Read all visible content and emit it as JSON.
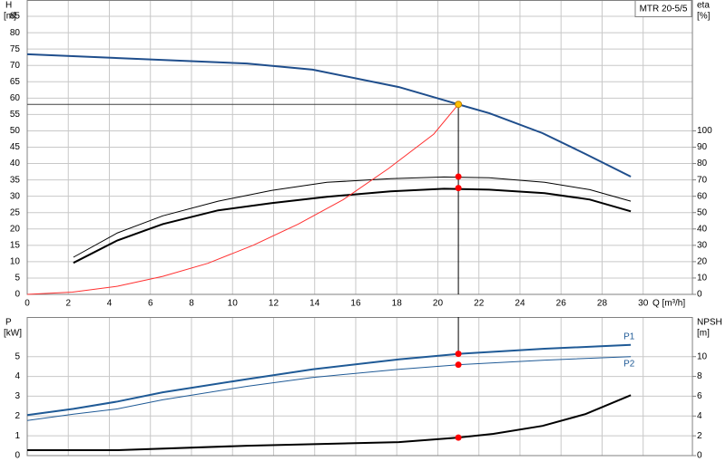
{
  "chart_data": [
    {
      "type": "line",
      "title": "MTR 20-5/5",
      "xlabel": "Q [m³/h]",
      "ylabel": "H",
      "yunit": "[m]",
      "y2label": "eta",
      "y2unit": "[%]",
      "xlim": [
        0,
        32.4
      ],
      "xticks": [
        0,
        2,
        4,
        6,
        8,
        10,
        12,
        14,
        16,
        18,
        20,
        22,
        24,
        26,
        28,
        30
      ],
      "ylim": [
        0,
        90
      ],
      "yticks": [
        0,
        5,
        10,
        15,
        20,
        25,
        30,
        35,
        40,
        45,
        50,
        55,
        60,
        65,
        70,
        75,
        80,
        85
      ],
      "y2lim": [
        0,
        180
      ],
      "y2ticks": [
        0,
        10,
        20,
        30,
        40,
        50,
        60,
        70,
        80,
        90,
        100
      ],
      "grid": true,
      "series": [
        {
          "color": "#1f4e8c",
          "width": 2,
          "x": [
            0,
            10.7,
            13.9,
            18.1,
            21,
            22.5,
            25.1,
            27.2,
            29.4
          ],
          "values": [
            73.4,
            70.6,
            68.7,
            63.4,
            58.1,
            55.4,
            49.3,
            42.9,
            36
          ]
        },
        {
          "color": "#000000",
          "width": 1,
          "axis": "y2",
          "x": [
            2.25,
            4.4,
            6.6,
            9.3,
            11.9,
            14.6,
            17.7,
            20.3,
            22.5,
            25.2,
            27.4,
            29.4
          ],
          "values": [
            22.7,
            37.6,
            48,
            57,
            63.5,
            68.5,
            70.7,
            71.8,
            71.3,
            68.5,
            64,
            57
          ]
        },
        {
          "color": "#000000",
          "width": 2,
          "axis": "y2",
          "x": [
            2.25,
            4.4,
            6.6,
            9.3,
            11.9,
            14.6,
            17.7,
            20.3,
            22.5,
            25.2,
            27.4,
            29.4
          ],
          "values": [
            19.3,
            33,
            43,
            51.4,
            55.8,
            59.7,
            63,
            64.6,
            64,
            61.9,
            58,
            50.8
          ]
        },
        {
          "color": "#ff3030",
          "width": 1,
          "x": [
            0,
            2.2,
            4.4,
            6.6,
            8.8,
            11,
            13.2,
            15.4,
            17.6,
            19.8,
            21
          ],
          "values": [
            0,
            0.7,
            2.5,
            5.5,
            9.5,
            15,
            21.5,
            29,
            38.5,
            49,
            58.1
          ]
        }
      ],
      "markers": [
        {
          "x": 21,
          "y": 58.1,
          "color": "#ffc000"
        },
        {
          "x": 21,
          "y": 72,
          "axis": "y2",
          "color": "#ff0000"
        },
        {
          "x": 21,
          "y": 65,
          "axis": "y2",
          "color": "#ff0000"
        }
      ]
    },
    {
      "type": "line",
      "ylabel": "P",
      "yunit": "[kW]",
      "y2label": "NPSH",
      "y2unit": "[m]",
      "xlim": [
        0,
        32.4
      ],
      "xticks": [
        0,
        2,
        4,
        6,
        8,
        10,
        12,
        14,
        16,
        18,
        20,
        22,
        24,
        26,
        28,
        30
      ],
      "ylim": [
        0,
        7
      ],
      "yticks": [
        0,
        1,
        2,
        3,
        4,
        5
      ],
      "y2lim": [
        0,
        14
      ],
      "y2ticks": [
        0,
        2,
        4,
        6,
        8,
        10
      ],
      "grid": true,
      "series": [
        {
          "name": "P1",
          "color": "#1f5a96",
          "width": 2,
          "x": [
            0,
            2.25,
            4.4,
            6.6,
            10.7,
            13.9,
            18.1,
            21,
            25.2,
            29.4
          ],
          "values": [
            2.05,
            2.36,
            2.73,
            3.2,
            3.86,
            4.36,
            4.86,
            5.14,
            5.4,
            5.59
          ]
        },
        {
          "name": "P2",
          "color": "#1f5a96",
          "width": 1,
          "x": [
            0,
            2.25,
            4.4,
            6.6,
            10.7,
            13.9,
            18.1,
            21,
            25.2,
            29.4
          ],
          "values": [
            1.77,
            2.09,
            2.36,
            2.82,
            3.5,
            3.95,
            4.36,
            4.59,
            4.82,
            5.0
          ]
        },
        {
          "color": "#000000",
          "width": 2,
          "axis": "y2",
          "x": [
            0,
            4.4,
            10.7,
            18.1,
            21,
            22.7,
            25.1,
            27.2,
            29.4
          ],
          "values": [
            0.55,
            0.55,
            1.0,
            1.36,
            1.82,
            2.2,
            3.0,
            4.2,
            6.1
          ]
        }
      ],
      "markers": [
        {
          "x": 21,
          "y": 5.14,
          "color": "#ff0000"
        },
        {
          "x": 21,
          "y": 4.59,
          "color": "#ff0000"
        },
        {
          "x": 21,
          "y": 1.82,
          "axis": "y2",
          "color": "#ff0000"
        }
      ]
    }
  ]
}
